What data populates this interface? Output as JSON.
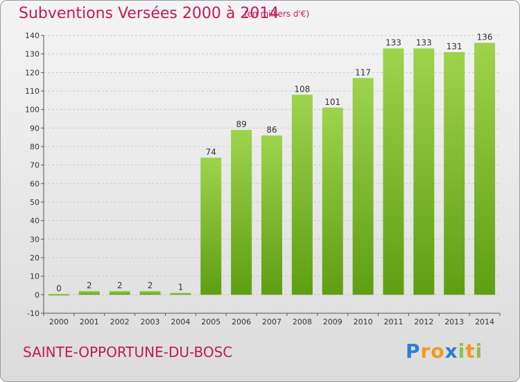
{
  "header": {
    "title": "Subventions Versées 2000 à 2014",
    "unit": "(en milliers d'€)"
  },
  "footer": {
    "commune": "SAINTE-OPPORTUNE-DU-BOSC",
    "logo": "Proxiti"
  },
  "colors": {
    "title": "#c2185b",
    "bar_light": "#9ed34e",
    "bar_dark": "#5f9e12",
    "grid": "#c8c8c8"
  },
  "chart_data": {
    "type": "bar",
    "categories": [
      "2000",
      "2001",
      "2002",
      "2003",
      "2004",
      "2005",
      "2006",
      "2007",
      "2008",
      "2009",
      "2010",
      "2011",
      "2012",
      "2013",
      "2014"
    ],
    "values": [
      0,
      2,
      2,
      2,
      1,
      74,
      89,
      86,
      108,
      101,
      117,
      133,
      133,
      131,
      136
    ],
    "data_labels": [
      "0",
      "2",
      "2",
      "2",
      "1",
      "74",
      "89",
      "86",
      "108",
      "101",
      "117",
      "133",
      "133",
      "131",
      "136"
    ],
    "title": "Subventions Versées 2000 à 2014",
    "xlabel": "",
    "ylabel": "",
    "ylim": [
      -10,
      140
    ],
    "yticks": [
      -10,
      0,
      10,
      20,
      30,
      40,
      50,
      60,
      70,
      80,
      90,
      100,
      110,
      120,
      130,
      140
    ],
    "grid": "horizontal dashed"
  }
}
